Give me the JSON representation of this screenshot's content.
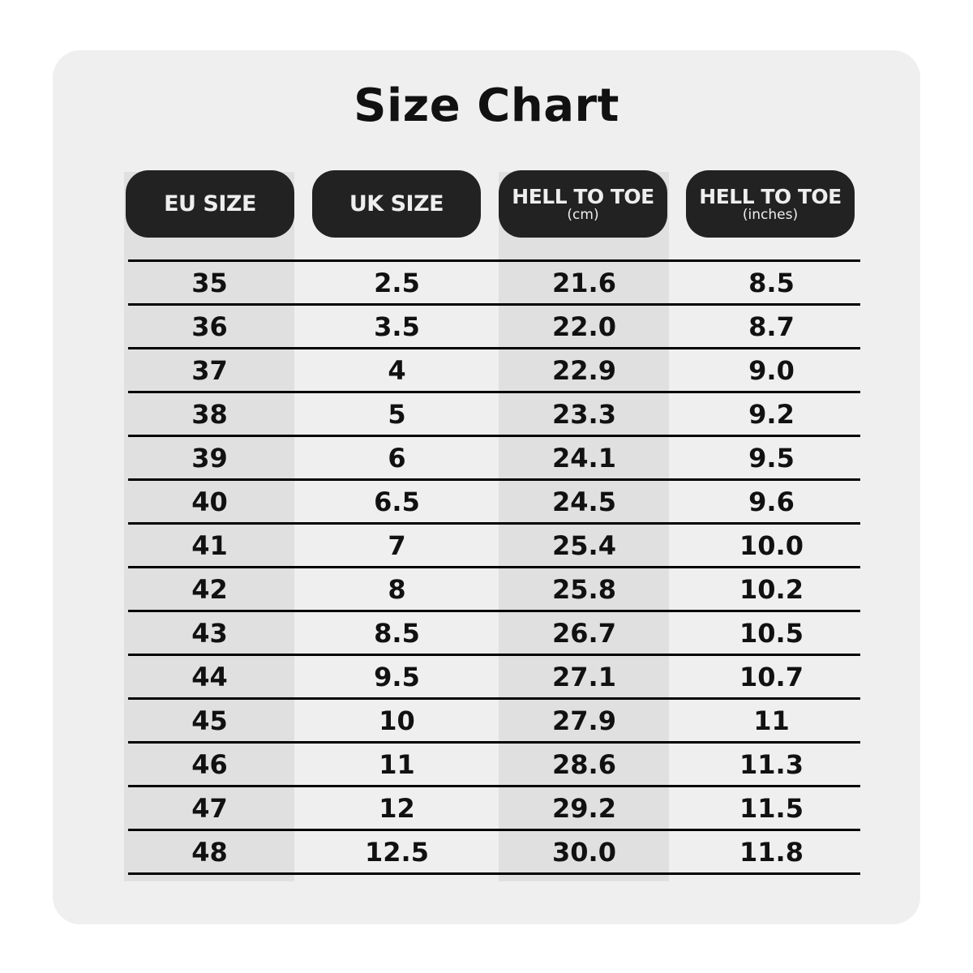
{
  "title": "Size Chart",
  "headers": [
    {
      "label": "EU SIZE",
      "unit": ""
    },
    {
      "label": "UK SIZE",
      "unit": ""
    },
    {
      "label": "HELL TO TOE",
      "unit": "(cm)"
    },
    {
      "label": "HELL TO TOE",
      "unit": "(inches)"
    }
  ],
  "rows": [
    [
      "35",
      "2.5",
      "21.6",
      "8.5"
    ],
    [
      "36",
      "3.5",
      "22.0",
      "8.7"
    ],
    [
      "37",
      "4",
      "22.9",
      "9.0"
    ],
    [
      "38",
      "5",
      "23.3",
      "9.2"
    ],
    [
      "39",
      "6",
      "24.1",
      "9.5"
    ],
    [
      "40",
      "6.5",
      "24.5",
      "9.6"
    ],
    [
      "41",
      "7",
      "25.4",
      "10.0"
    ],
    [
      "42",
      "8",
      "25.8",
      "10.2"
    ],
    [
      "43",
      "8.5",
      "26.7",
      "10.5"
    ],
    [
      "44",
      "9.5",
      "27.1",
      "10.7"
    ],
    [
      "45",
      "10",
      "27.9",
      "11"
    ],
    [
      "46",
      "11",
      "28.6",
      "11.3"
    ],
    [
      "47",
      "12",
      "29.2",
      "11.5"
    ],
    [
      "48",
      "12.5",
      "30.0",
      "11.8"
    ]
  ]
}
